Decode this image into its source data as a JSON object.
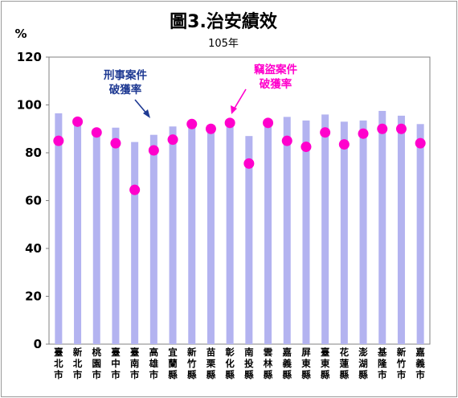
{
  "chart_data": {
    "type": "bar",
    "title": "圖3.治安績效",
    "subtitle": "105年",
    "ylabel": "%",
    "ylim": [
      0,
      120
    ],
    "yticks": [
      "0",
      "20",
      "40",
      "60",
      "80",
      "100",
      "120"
    ],
    "categories": [
      "臺北市",
      "新北市",
      "桃園市",
      "臺中市",
      "臺南市",
      "高雄市",
      "宜蘭縣",
      "新竹縣",
      "苗栗縣",
      "彰化縣",
      "南投縣",
      "雲林縣",
      "嘉義縣",
      "屏東縣",
      "臺東縣",
      "花蓮縣",
      "澎湖縣",
      "基隆市",
      "新竹市",
      "嘉義市"
    ],
    "series": [
      {
        "name": "刑事案件破獲率",
        "type": "bar",
        "color": "#b3b3f0",
        "values": [
          96.5,
          93.5,
          88.5,
          90.5,
          84.5,
          87.5,
          91,
          92,
          90,
          93,
          87,
          92.5,
          95,
          93.5,
          96,
          93,
          93.5,
          97.5,
          95.5,
          92
        ]
      },
      {
        "name": "竊盜案件破獲率",
        "type": "scatter",
        "color": "#ff00cc",
        "values": [
          85,
          93,
          88.5,
          84,
          64.5,
          81,
          85.5,
          92,
          90,
          92.5,
          75.5,
          92.5,
          85,
          82.5,
          88.5,
          83.5,
          88,
          90,
          90,
          84
        ]
      }
    ],
    "annotations": [
      {
        "lines": [
          "刑事案件",
          "破獲率"
        ],
        "color": "#1f3a93"
      },
      {
        "lines": [
          "竊盜案件",
          "破獲率"
        ],
        "color": "#ff00cc"
      }
    ]
  }
}
